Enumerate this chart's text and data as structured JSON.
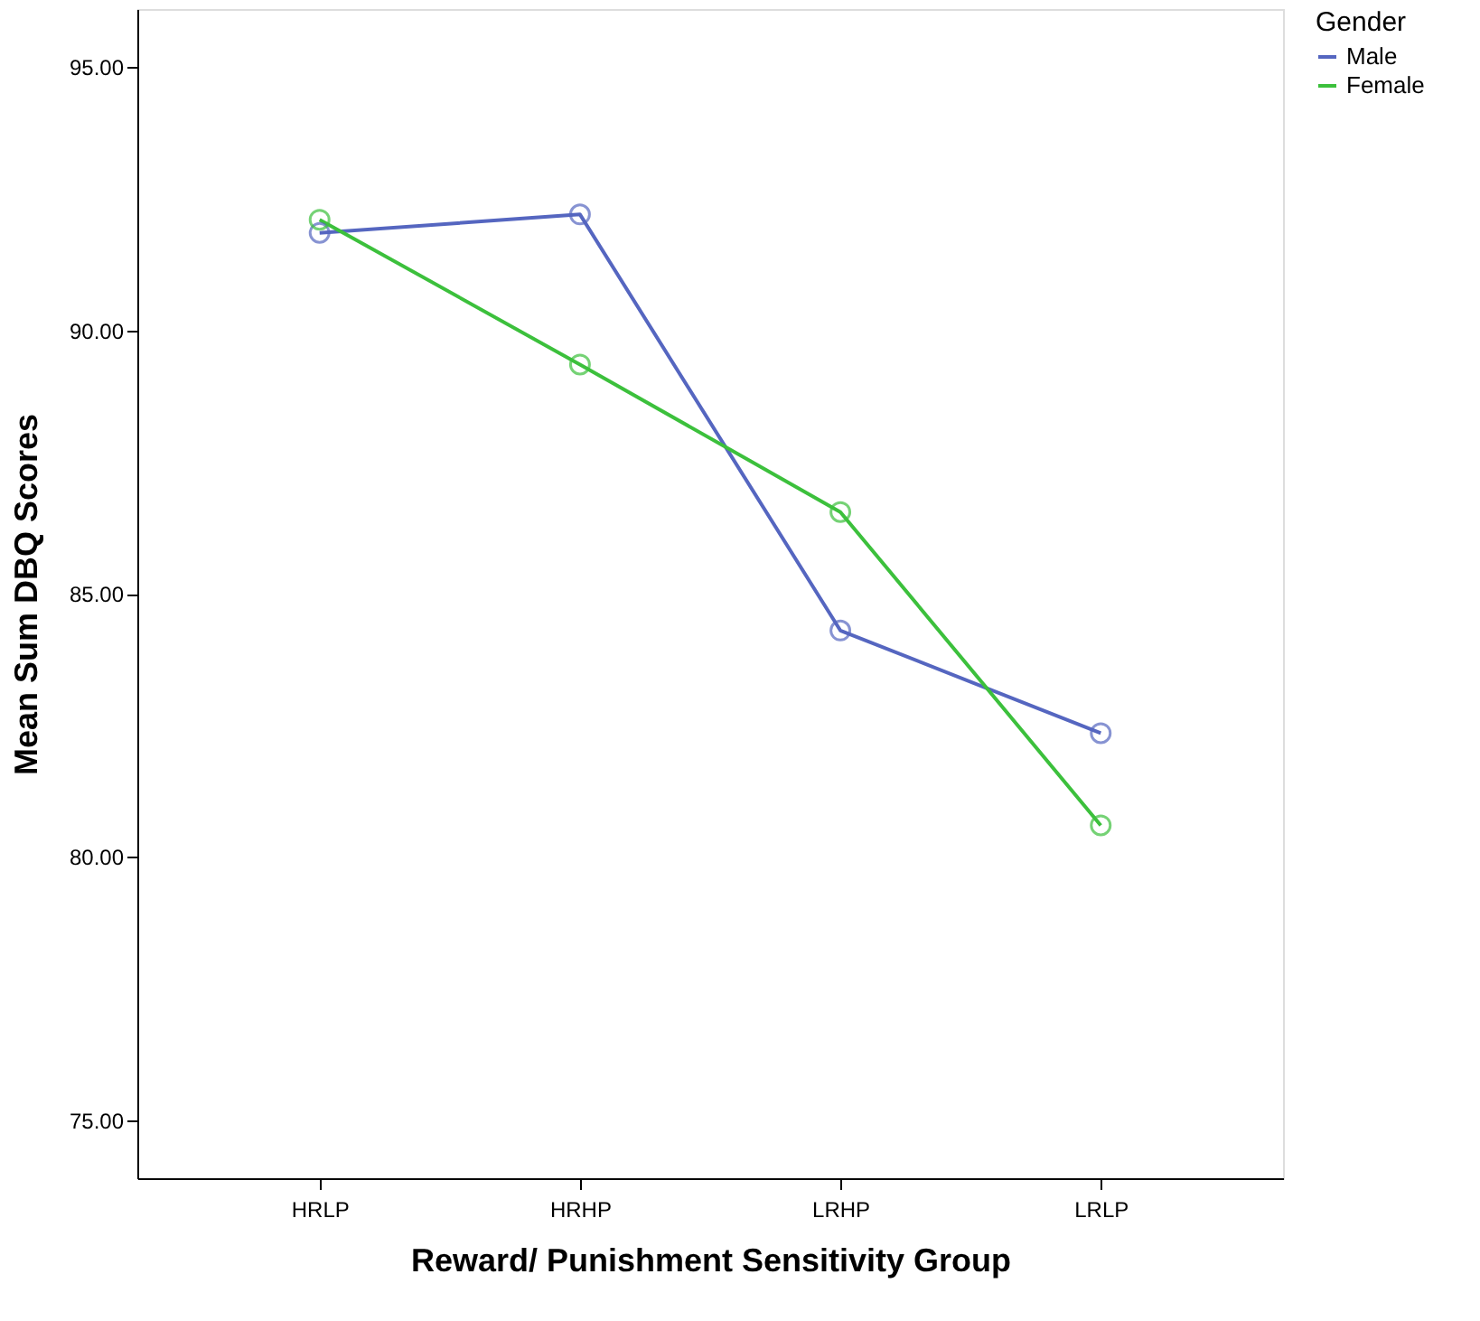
{
  "chart_data": {
    "type": "line",
    "xlabel": "Reward/ Punishment Sensitivity Group",
    "ylabel": "Mean Sum DBQ Scores",
    "legend_title": "Gender",
    "legend": "top right",
    "marker": "circle",
    "line_style": "solid",
    "grid": false,
    "categories": [
      "HRLP",
      "HRHP",
      "LRHP",
      "LRLP"
    ],
    "ylim": [
      73.9,
      96.1
    ],
    "yticks": [
      {
        "value": 75,
        "label": "75.00"
      },
      {
        "value": 80,
        "label": "80.00"
      },
      {
        "value": 85,
        "label": "85.00"
      },
      {
        "value": 90,
        "label": "90.00"
      },
      {
        "value": 95,
        "label": "95.00"
      }
    ],
    "series": [
      {
        "name": "Male",
        "color": "#5566c0",
        "values": [
          91.85,
          92.2,
          84.3,
          82.35
        ]
      },
      {
        "name": "Female",
        "color": "#3cc03c",
        "values": [
          92.1,
          89.35,
          86.55,
          80.6
        ]
      }
    ]
  }
}
